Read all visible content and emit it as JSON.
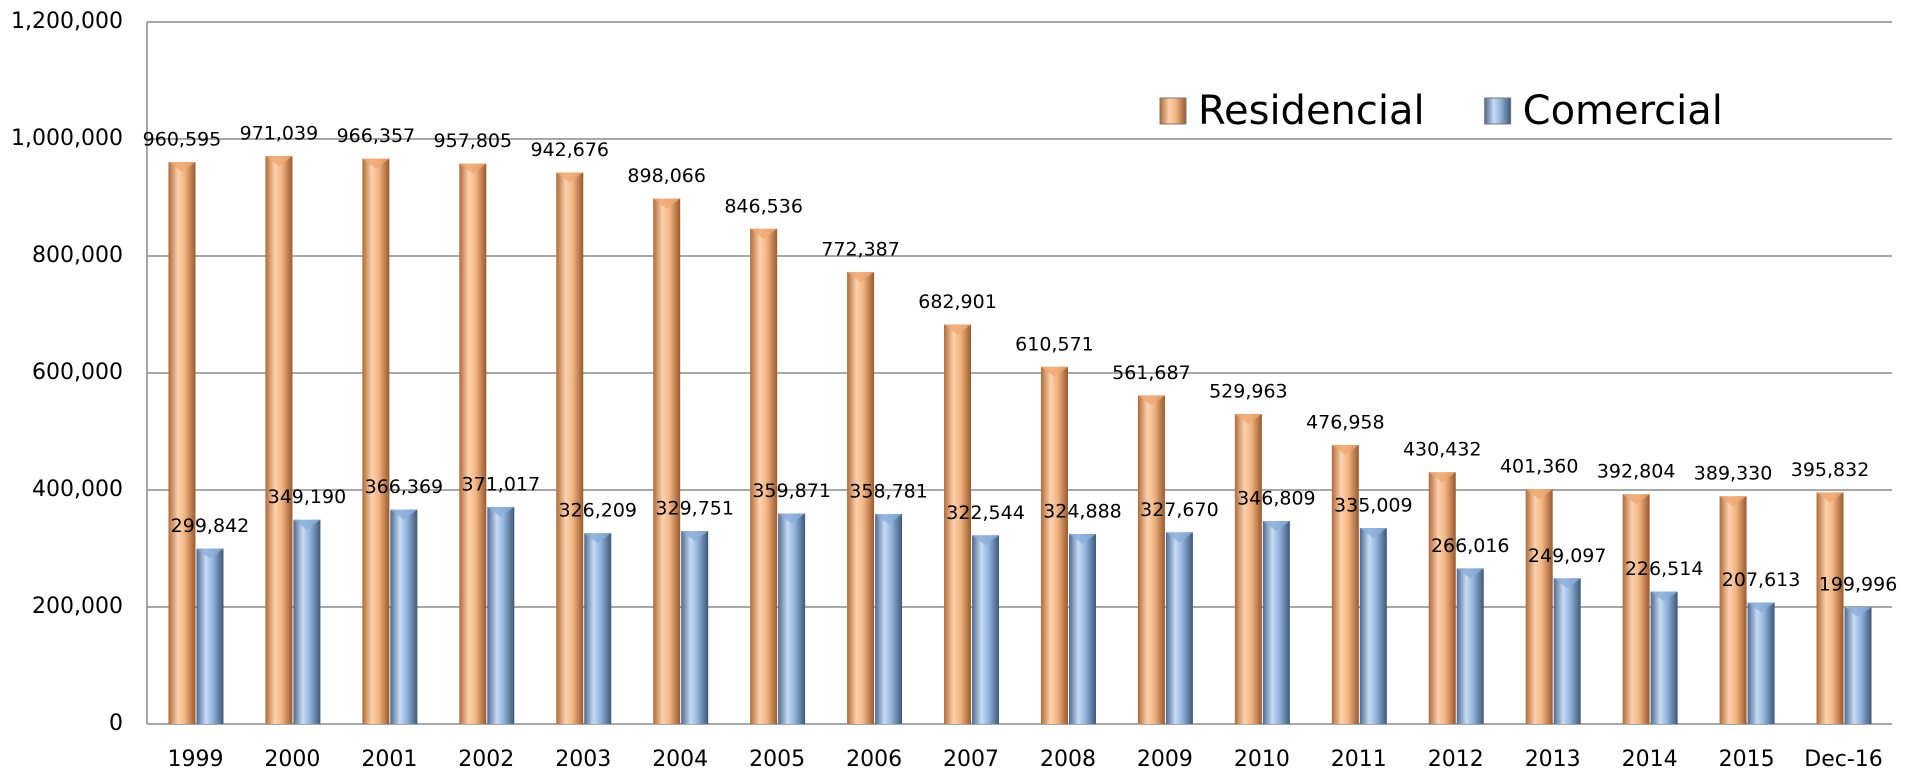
{
  "chart_data": {
    "type": "bar",
    "categories": [
      "1999",
      "2000",
      "2001",
      "2002",
      "2003",
      "2004",
      "2005",
      "2006",
      "2007",
      "2008",
      "2009",
      "2010",
      "2011",
      "2012",
      "2013",
      "2014",
      "2015",
      "Dec-16"
    ],
    "series": [
      {
        "name": "Residencial",
        "color": "#f0a870",
        "values": [
          960595,
          971039,
          966357,
          957805,
          942676,
          898066,
          846536,
          772387,
          682901,
          610571,
          561687,
          529963,
          476958,
          430432,
          401360,
          392804,
          389330,
          395832
        ],
        "value_labels": [
          "960,595",
          "971,039",
          "966,357",
          "957,805",
          "942,676",
          "898,066",
          "846,536",
          "772,387",
          "682,901",
          "610,571",
          "561,687",
          "529,963",
          "476,958",
          "430,432",
          "401,360",
          "392,804",
          "389,330",
          "395,832"
        ]
      },
      {
        "name": "Comercial",
        "color": "#8aaedc",
        "values": [
          299842,
          349190,
          366369,
          371017,
          326209,
          329751,
          359871,
          358781,
          322544,
          324888,
          327670,
          346809,
          335009,
          266016,
          249097,
          226514,
          207613,
          199996
        ],
        "value_labels": [
          "299,842",
          "349,190",
          "366,369",
          "371,017",
          "326,209",
          "329,751",
          "359,871",
          "358,781",
          "322,544",
          "324,888",
          "327,670",
          "346,809",
          "335,009",
          "266,016",
          "249,097",
          "226,514",
          "207,613",
          "199,996"
        ]
      }
    ],
    "ylim": [
      0,
      1200000
    ],
    "yticks": [
      0,
      {
        "value": 200000,
        "label": "200,000"
      },
      {
        "value": 400000,
        "label": "400,000"
      },
      {
        "value": 600000,
        "label": "600,000"
      },
      {
        "value": 800000,
        "label": "800,000"
      },
      {
        "value": 1000000,
        "label": "1,000,000"
      },
      {
        "value": 1200000,
        "label": "1,200,000"
      }
    ],
    "grid": true,
    "legend": "upper right"
  }
}
